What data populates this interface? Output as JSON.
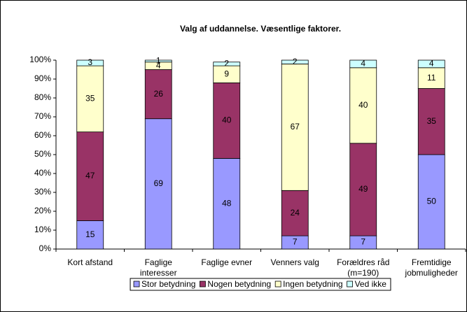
{
  "chart_data": {
    "type": "stacked_bar",
    "title": "Valg af uddannelse. Væsentlige faktorer.",
    "categories": [
      "Kort afstand",
      "Faglige\ninteresser",
      "Faglige evner",
      "Venners valg",
      "Forældres råd\n(m=190)",
      "Fremtidige\njobmuligheder"
    ],
    "series": [
      {
        "name": "Stor betydning",
        "color": "#9999ff",
        "values": [
          15,
          69,
          48,
          7,
          7,
          50
        ]
      },
      {
        "name": "Nogen betydning",
        "color": "#993366",
        "values": [
          47,
          26,
          40,
          24,
          49,
          35
        ]
      },
      {
        "name": "Ingen betydning",
        "color": "#ffffcc",
        "values": [
          35,
          4,
          9,
          67,
          40,
          11
        ]
      },
      {
        "name": "Ved ikke",
        "color": "#ccffff",
        "values": [
          3,
          1,
          2,
          2,
          4,
          4
        ]
      }
    ],
    "ylim": [
      0,
      100
    ],
    "yticks": [
      {
        "value": 0,
        "label": "0%"
      },
      {
        "value": 10,
        "label": "10%"
      },
      {
        "value": 20,
        "label": "20%"
      },
      {
        "value": 30,
        "label": "30%"
      },
      {
        "value": 40,
        "label": "40%"
      },
      {
        "value": 50,
        "label": "50%"
      },
      {
        "value": 60,
        "label": "60%"
      },
      {
        "value": 70,
        "label": "70%"
      },
      {
        "value": 80,
        "label": "80%"
      },
      {
        "value": 90,
        "label": "90%"
      },
      {
        "value": 100,
        "label": "100%"
      }
    ],
    "legend": "bottom"
  }
}
